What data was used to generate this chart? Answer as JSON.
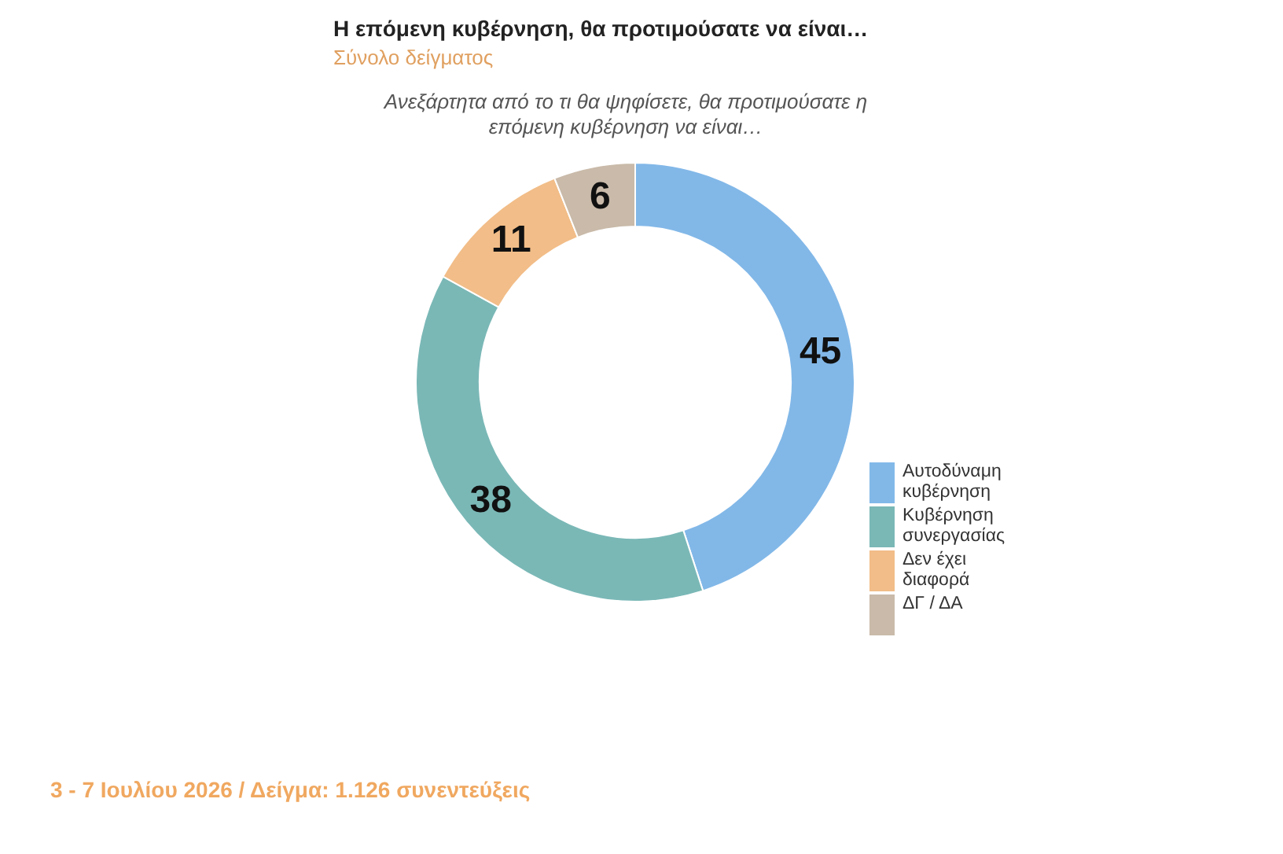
{
  "chart_data": {
    "type": "donut",
    "title": "Η επόμενη κυβέρνηση, θα προτιμούσατε να είναι…",
    "subtitle": "Σύνολο δείγματος",
    "categories": [
      "Αυτοδύναμη κυβέρνηση",
      "Κυβέρνηση συνεργασίας",
      "Δεν έχει διαφορά",
      "ΔΓ / ΔΑ"
    ],
    "values": [
      45,
      38,
      11,
      6
    ],
    "colors": [
      "#82b8e8",
      "#7ab8b6",
      "#f2bd88",
      "#c9baa9"
    ],
    "data_labels": true,
    "legend": "right",
    "annotations": [
      "Ανεξάρτητα από το τι θα ψηφίσετε, θα προτιμούσατε η επόμενη κυβέρνηση να είναι…",
      "3 - 7 Ιουλίου 2026  /  Δείγμα:  1.126 συνεντεύξεις"
    ]
  }
}
